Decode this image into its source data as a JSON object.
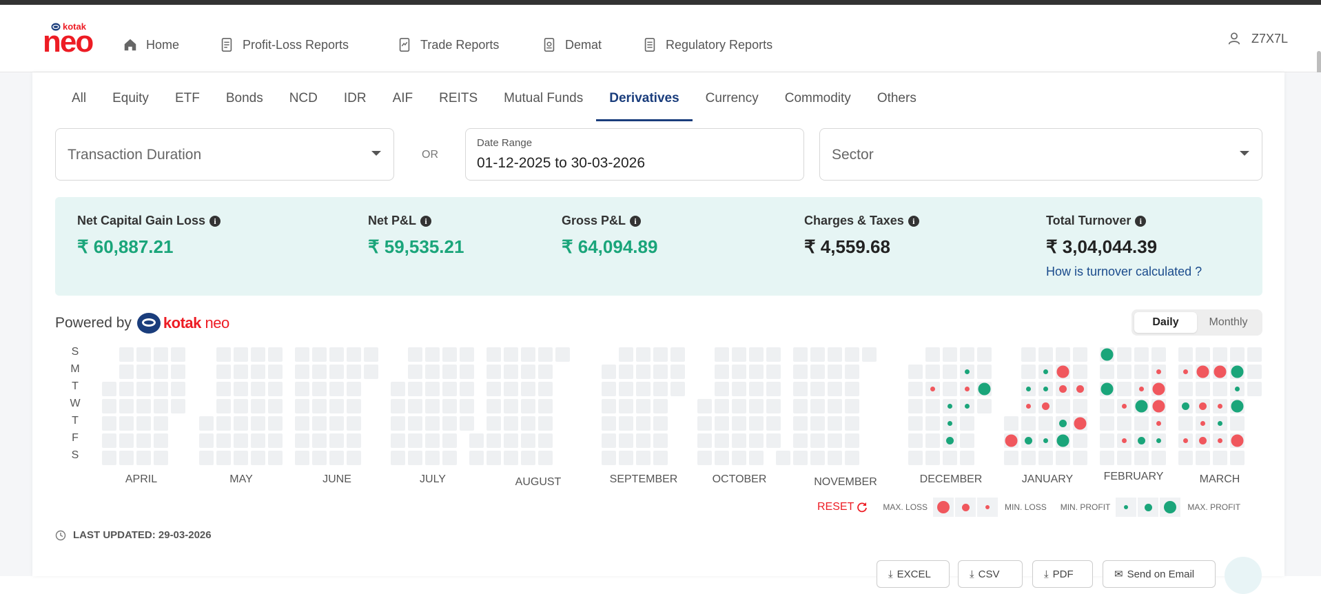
{
  "navbar": {
    "logo_small": "kotak",
    "logo_big": "neo",
    "items": [
      {
        "label": "Home",
        "icon": "home-icon"
      },
      {
        "label": "Profit-Loss Reports",
        "icon": "report-icon"
      },
      {
        "label": "Trade Reports",
        "icon": "report-icon"
      },
      {
        "label": "Demat",
        "icon": "report-icon"
      },
      {
        "label": "Regulatory Reports",
        "icon": "report-icon"
      }
    ],
    "user": "Z7X7L"
  },
  "tabs": [
    "All",
    "Equity",
    "ETF",
    "Bonds",
    "NCD",
    "IDR",
    "AIF",
    "REITS",
    "Mutual Funds",
    "Derivatives",
    "Currency",
    "Commodity",
    "Others"
  ],
  "active_tab": "Derivatives",
  "filters": {
    "duration_placeholder": "Transaction Duration",
    "or": "OR",
    "date_label": "Date Range",
    "date_value": "01-12-2025 to 30-03-2026",
    "sector_placeholder": "Sector"
  },
  "summary": {
    "net_capital_gain_loss": {
      "label": "Net Capital Gain Loss",
      "value": "₹ 60,887.21"
    },
    "net_pl": {
      "label": "Net P&L",
      "value": "₹ 59,535.21"
    },
    "gross_pl": {
      "label": "Gross P&L",
      "value": "₹ 64,094.89"
    },
    "charges": {
      "label": "Charges & Taxes",
      "value": "₹ 4,559.68"
    },
    "turnover": {
      "label": "Total Turnover",
      "value": "₹ 3,04,044.39",
      "link": "How is turnover calculated ?"
    }
  },
  "powered": {
    "text": "Powered by",
    "brand_a": "kotak",
    "brand_b": "neo"
  },
  "toggle": {
    "daily": "Daily",
    "monthly": "Monthly",
    "selected": "Daily"
  },
  "day_labels": [
    "S",
    "M",
    "T",
    "W",
    "T",
    "F",
    "S"
  ],
  "months": [
    "APRIL",
    "MAY",
    "JUNE",
    "JULY",
    "AUGUST",
    "SEPTEMBER",
    "OCTOBER",
    "NOVEMBER",
    "DECEMBER",
    "JANUARY",
    "FEBRUARY",
    "MARCH"
  ],
  "calendar_dots": [
    {
      "month": "DECEMBER",
      "col": 3,
      "row": 1,
      "level": "profit-1"
    },
    {
      "month": "DECEMBER",
      "col": 1,
      "row": 2,
      "level": "loss-1"
    },
    {
      "month": "DECEMBER",
      "col": 3,
      "row": 2,
      "level": "loss-1"
    },
    {
      "month": "DECEMBER",
      "col": 4,
      "row": 2,
      "level": "profit-3"
    },
    {
      "month": "DECEMBER",
      "col": 2,
      "row": 3,
      "level": "profit-1"
    },
    {
      "month": "DECEMBER",
      "col": 3,
      "row": 3,
      "level": "profit-1"
    },
    {
      "month": "DECEMBER",
      "col": 2,
      "row": 4,
      "level": "profit-1"
    },
    {
      "month": "DECEMBER",
      "col": 2,
      "row": 5,
      "level": "profit-2"
    },
    {
      "month": "JANUARY",
      "col": 2,
      "row": 1,
      "level": "profit-1"
    },
    {
      "month": "JANUARY",
      "col": 3,
      "row": 1,
      "level": "loss-3"
    },
    {
      "month": "JANUARY",
      "col": 1,
      "row": 2,
      "level": "profit-1"
    },
    {
      "month": "JANUARY",
      "col": 2,
      "row": 2,
      "level": "profit-1"
    },
    {
      "month": "JANUARY",
      "col": 3,
      "row": 2,
      "level": "loss-2"
    },
    {
      "month": "JANUARY",
      "col": 4,
      "row": 2,
      "level": "loss-2"
    },
    {
      "month": "JANUARY",
      "col": 1,
      "row": 3,
      "level": "loss-1"
    },
    {
      "month": "JANUARY",
      "col": 2,
      "row": 3,
      "level": "loss-2"
    },
    {
      "month": "JANUARY",
      "col": 3,
      "row": 4,
      "level": "profit-2"
    },
    {
      "month": "JANUARY",
      "col": 4,
      "row": 4,
      "level": "loss-3"
    },
    {
      "month": "JANUARY",
      "col": 0,
      "row": 5,
      "level": "loss-3"
    },
    {
      "month": "JANUARY",
      "col": 1,
      "row": 5,
      "level": "profit-2"
    },
    {
      "month": "JANUARY",
      "col": 2,
      "row": 5,
      "level": "profit-1"
    },
    {
      "month": "JANUARY",
      "col": 3,
      "row": 5,
      "level": "profit-3"
    },
    {
      "month": "FEBRUARY",
      "col": 0,
      "row": 0,
      "level": "profit-3"
    },
    {
      "month": "FEBRUARY",
      "col": 3,
      "row": 1,
      "level": "loss-1"
    },
    {
      "month": "FEBRUARY",
      "col": 0,
      "row": 2,
      "level": "profit-3"
    },
    {
      "month": "FEBRUARY",
      "col": 2,
      "row": 2,
      "level": "loss-1"
    },
    {
      "month": "FEBRUARY",
      "col": 3,
      "row": 2,
      "level": "loss-3"
    },
    {
      "month": "FEBRUARY",
      "col": 1,
      "row": 3,
      "level": "loss-1"
    },
    {
      "month": "FEBRUARY",
      "col": 2,
      "row": 3,
      "level": "profit-3"
    },
    {
      "month": "FEBRUARY",
      "col": 3,
      "row": 3,
      "level": "loss-3"
    },
    {
      "month": "FEBRUARY",
      "col": 3,
      "row": 4,
      "level": "loss-1"
    },
    {
      "month": "FEBRUARY",
      "col": 1,
      "row": 5,
      "level": "loss-1"
    },
    {
      "month": "FEBRUARY",
      "col": 2,
      "row": 5,
      "level": "profit-2"
    },
    {
      "month": "FEBRUARY",
      "col": 3,
      "row": 5,
      "level": "profit-1"
    },
    {
      "month": "MARCH",
      "col": 0,
      "row": 1,
      "level": "loss-1"
    },
    {
      "month": "MARCH",
      "col": 1,
      "row": 1,
      "level": "loss-3"
    },
    {
      "month": "MARCH",
      "col": 2,
      "row": 1,
      "level": "loss-3"
    },
    {
      "month": "MARCH",
      "col": 3,
      "row": 1,
      "level": "profit-3"
    },
    {
      "month": "MARCH",
      "col": 3,
      "row": 2,
      "level": "profit-1"
    },
    {
      "month": "MARCH",
      "col": 0,
      "row": 3,
      "level": "profit-2"
    },
    {
      "month": "MARCH",
      "col": 1,
      "row": 3,
      "level": "loss-2"
    },
    {
      "month": "MARCH",
      "col": 2,
      "row": 3,
      "level": "loss-1"
    },
    {
      "month": "MARCH",
      "col": 3,
      "row": 3,
      "level": "profit-3"
    },
    {
      "month": "MARCH",
      "col": 1,
      "row": 4,
      "level": "loss-1"
    },
    {
      "month": "MARCH",
      "col": 2,
      "row": 4,
      "level": "profit-1"
    },
    {
      "month": "MARCH",
      "col": 0,
      "row": 5,
      "level": "loss-1"
    },
    {
      "month": "MARCH",
      "col": 1,
      "row": 5,
      "level": "loss-2"
    },
    {
      "month": "MARCH",
      "col": 2,
      "row": 5,
      "level": "loss-1"
    },
    {
      "month": "MARCH",
      "col": 3,
      "row": 5,
      "level": "loss-3"
    }
  ],
  "legend": {
    "reset": "RESET",
    "max_loss": "MAX. LOSS",
    "min_loss": "MIN. LOSS",
    "min_profit": "MIN. PROFIT",
    "max_profit": "MAX. PROFIT"
  },
  "last_updated": "LAST UPDATED: 29-03-2026",
  "export_buttons": [
    "EXCEL",
    "CSV",
    "PDF",
    "Send on Email"
  ],
  "colors": {
    "profit": "#1aa57a",
    "loss": "#f0575d",
    "cell": "#eef0f2",
    "accent": "#1a3d7c"
  }
}
